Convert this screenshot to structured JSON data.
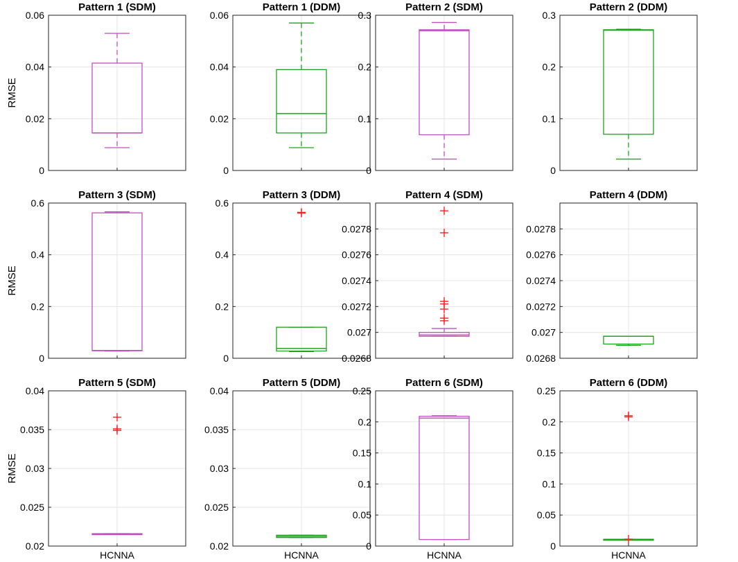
{
  "colors": {
    "sdm": "#c04fc0",
    "ddm": "#1aa51a",
    "outlier": "#ff2020",
    "grid": "#e4e4e4",
    "axis": "#222222"
  },
  "chart_data": [
    {
      "type": "box",
      "title": "Pattern 1 (SDM)",
      "ylabel": "RMSE",
      "xlabel": "",
      "category": "",
      "ylim": [
        0,
        0.06
      ],
      "yticks": [
        0,
        0.02,
        0.04,
        0.06
      ],
      "tick_labels": [
        "0",
        "0.02",
        "0.04",
        "0.06"
      ],
      "color_key": "sdm",
      "box": {
        "whisker_low": 0.0088,
        "q1": 0.0145,
        "median": 0.0145,
        "q3": 0.0415,
        "whisker_high": 0.053
      },
      "outliers": []
    },
    {
      "type": "box",
      "title": "Pattern 1 (DDM)",
      "ylabel": "",
      "xlabel": "",
      "category": "",
      "ylim": [
        0,
        0.06
      ],
      "yticks": [
        0,
        0.02,
        0.04,
        0.06
      ],
      "tick_labels": [
        "0",
        "0.02",
        "0.04",
        "0.06"
      ],
      "color_key": "ddm",
      "box": {
        "whisker_low": 0.0088,
        "q1": 0.0145,
        "median": 0.022,
        "q3": 0.039,
        "whisker_high": 0.057
      },
      "outliers": []
    },
    {
      "type": "box",
      "title": "Pattern 2 (SDM)",
      "ylabel": "",
      "xlabel": "",
      "category": "",
      "ylim": [
        0,
        0.3
      ],
      "yticks": [
        0,
        0.1,
        0.2,
        0.3
      ],
      "tick_labels": [
        "0",
        "0.1",
        "0.2",
        "0.3"
      ],
      "color_key": "sdm",
      "box": {
        "whisker_low": 0.022,
        "q1": 0.069,
        "median": 0.27,
        "q3": 0.272,
        "whisker_high": 0.286
      },
      "outliers": []
    },
    {
      "type": "box",
      "title": "Pattern 2 (DDM)",
      "ylabel": "",
      "xlabel": "",
      "category": "",
      "ylim": [
        0,
        0.3
      ],
      "yticks": [
        0,
        0.1,
        0.2,
        0.3
      ],
      "tick_labels": [
        "0",
        "0.1",
        "0.2",
        "0.3"
      ],
      "color_key": "ddm",
      "box": {
        "whisker_low": 0.022,
        "q1": 0.07,
        "median": 0.271,
        "q3": 0.272,
        "whisker_high": 0.273
      },
      "outliers": []
    },
    {
      "type": "box",
      "title": "Pattern 3 (SDM)",
      "ylabel": "RMSE",
      "xlabel": "",
      "category": "",
      "ylim": [
        0,
        0.6
      ],
      "yticks": [
        0,
        0.2,
        0.4,
        0.6
      ],
      "tick_labels": [
        "0",
        "0.2",
        "0.4",
        "0.6"
      ],
      "color_key": "sdm",
      "box": {
        "whisker_low": 0.028,
        "q1": 0.029,
        "median": 0.03,
        "q3": 0.562,
        "whisker_high": 0.566
      },
      "outliers": []
    },
    {
      "type": "box",
      "title": "Pattern 3 (DDM)",
      "ylabel": "",
      "xlabel": "",
      "category": "",
      "ylim": [
        0,
        0.6
      ],
      "yticks": [
        0,
        0.2,
        0.4,
        0.6
      ],
      "tick_labels": [
        "0",
        "0.2",
        "0.4",
        "0.6"
      ],
      "color_key": "ddm",
      "box": {
        "whisker_low": 0.026,
        "q1": 0.028,
        "median": 0.038,
        "q3": 0.12,
        "whisker_high": 0.12
      },
      "outliers": [
        0.561,
        0.564
      ]
    },
    {
      "type": "box",
      "title": "Pattern 4 (SDM)",
      "ylabel": "",
      "xlabel": "",
      "category": "",
      "ylim": [
        0.0268,
        0.028
      ],
      "yticks": [
        0.0268,
        0.027,
        0.0272,
        0.0274,
        0.0276,
        0.0278
      ],
      "tick_labels": [
        "0.0268",
        "0.027",
        "0.0272",
        "0.0274",
        "0.0276",
        "0.0278"
      ],
      "color_key": "sdm",
      "box": {
        "whisker_low": 0.02697,
        "q1": 0.02697,
        "median": 0.02698,
        "q3": 0.027,
        "whisker_high": 0.02703
      },
      "outliers": [
        0.02709,
        0.02711,
        0.02718,
        0.02722,
        0.02724,
        0.02777,
        0.02794
      ]
    },
    {
      "type": "box",
      "title": "Pattern 4 (DDM)",
      "ylabel": "",
      "xlabel": "",
      "category": "",
      "ylim": [
        0.0268,
        0.028
      ],
      "yticks": [
        0.0268,
        0.027,
        0.0272,
        0.0274,
        0.0276,
        0.0278
      ],
      "tick_labels": [
        "0.0268",
        "0.027",
        "0.0272",
        "0.0274",
        "0.0276",
        "0.0278"
      ],
      "color_key": "ddm",
      "box": {
        "whisker_low": 0.0269,
        "q1": 0.02691,
        "median": 0.02697,
        "q3": 0.02697,
        "whisker_high": 0.02697
      },
      "outliers": []
    },
    {
      "type": "box",
      "title": "Pattern 5 (SDM)",
      "ylabel": "RMSE",
      "xlabel": "HCNNA",
      "category": "HCNNA",
      "ylim": [
        0.02,
        0.04
      ],
      "yticks": [
        0.02,
        0.025,
        0.03,
        0.035,
        0.04
      ],
      "tick_labels": [
        "0.02",
        "0.025",
        "0.03",
        "0.035",
        "0.04"
      ],
      "color_key": "sdm",
      "box": {
        "whisker_low": 0.02155,
        "q1": 0.02155,
        "median": 0.02158,
        "q3": 0.0216,
        "whisker_high": 0.0216
      },
      "outliers": [
        0.0349,
        0.0351,
        0.0366
      ]
    },
    {
      "type": "box",
      "title": "Pattern 5 (DDM)",
      "ylabel": "",
      "xlabel": "HCNNA",
      "category": "HCNNA",
      "ylim": [
        0.02,
        0.04
      ],
      "yticks": [
        0.02,
        0.025,
        0.03,
        0.035,
        0.04
      ],
      "tick_labels": [
        "0.02",
        "0.025",
        "0.03",
        "0.035",
        "0.04"
      ],
      "color_key": "ddm",
      "box": {
        "whisker_low": 0.0211,
        "q1": 0.0211,
        "median": 0.02125,
        "q3": 0.0214,
        "whisker_high": 0.0214
      },
      "outliers": []
    },
    {
      "type": "box",
      "title": "Pattern 6 (SDM)",
      "ylabel": "",
      "xlabel": "HCNNA",
      "category": "HCNNA",
      "ylim": [
        0,
        0.25
      ],
      "yticks": [
        0,
        0.05,
        0.1,
        0.15,
        0.2,
        0.25
      ],
      "tick_labels": [
        "0",
        "0.05",
        "0.1",
        "0.15",
        "0.2",
        "0.25"
      ],
      "color_key": "sdm",
      "box": {
        "whisker_low": 0.0105,
        "q1": 0.0105,
        "median": 0.206,
        "q3": 0.209,
        "whisker_high": 0.21
      },
      "outliers": []
    },
    {
      "type": "box",
      "title": "Pattern 6 (DDM)",
      "ylabel": "",
      "xlabel": "HCNNA",
      "category": "HCNNA",
      "ylim": [
        0,
        0.25
      ],
      "yticks": [
        0,
        0.05,
        0.1,
        0.15,
        0.2,
        0.25
      ],
      "tick_labels": [
        "0",
        "0.05",
        "0.1",
        "0.15",
        "0.2",
        "0.25"
      ],
      "color_key": "ddm",
      "box": {
        "whisker_low": 0.0103,
        "q1": 0.0105,
        "median": 0.0107,
        "q3": 0.011,
        "whisker_high": 0.011
      },
      "outliers": [
        0.0112,
        0.208,
        0.21
      ]
    }
  ]
}
